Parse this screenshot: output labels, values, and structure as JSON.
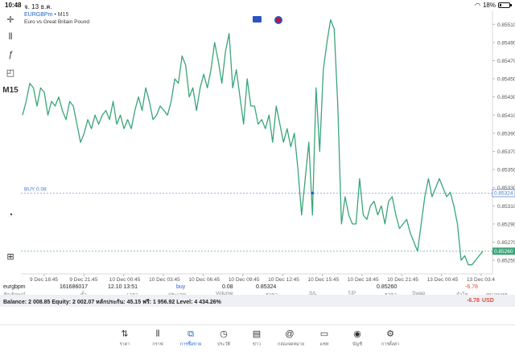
{
  "status": {
    "time": "10:48",
    "date": "จ. 13 ธ.ค.",
    "battery": "18%",
    "battery_level": 0.18
  },
  "toolbar": {
    "timeframe": "M15"
  },
  "chart_header": {
    "symbol": "EURGBPm",
    "sep": "•",
    "timeframe": "M15",
    "description": "Euro vs Great Britain Pound"
  },
  "chart_data": {
    "type": "line",
    "color": "#3aa57a",
    "ylim": [
      0.85235,
      0.8552
    ],
    "y_ticks": [
      "0.85510",
      "0.85490",
      "0.85470",
      "0.85450",
      "0.85430",
      "0.85410",
      "0.85390",
      "0.85370",
      "0.85350",
      "0.85330",
      "0.85310",
      "0.85290",
      "0.85270",
      "0.85250"
    ],
    "x_ticks": [
      "9 Dec 18:45",
      "9 Dec 21:45",
      "10 Dec 00:45",
      "10 Dec 03:45",
      "10 Dec 06:45",
      "10 Dec 09:45",
      "10 Dec 12:45",
      "10 Dec 15:45",
      "10 Dec 18:45",
      "10 Dec 21:45",
      "13 Dec 00:45",
      "13 Dec 03:4"
    ],
    "buy_level": 0.85324,
    "buy_label": "BUY 0.08",
    "buy_price_label": "0.85324",
    "current_price": 0.8526,
    "current_price_label": "0.85260",
    "values": [
      0.8541,
      0.85425,
      0.85445,
      0.8544,
      0.8542,
      0.8544,
      0.85435,
      0.8541,
      0.85425,
      0.8542,
      0.8543,
      0.85415,
      0.85405,
      0.85425,
      0.8542,
      0.854,
      0.8538,
      0.8539,
      0.85405,
      0.85395,
      0.8541,
      0.854,
      0.8541,
      0.85415,
      0.85405,
      0.85425,
      0.854,
      0.8541,
      0.85395,
      0.85405,
      0.85395,
      0.85415,
      0.8543,
      0.85415,
      0.8544,
      0.85425,
      0.85405,
      0.8541,
      0.8542,
      0.85415,
      0.8541,
      0.85425,
      0.8545,
      0.85445,
      0.85475,
      0.85465,
      0.8543,
      0.8544,
      0.85415,
      0.8544,
      0.85455,
      0.8544,
      0.8546,
      0.8549,
      0.8547,
      0.85445,
      0.8548,
      0.855,
      0.8544,
      0.8546,
      0.8543,
      0.854,
      0.8545,
      0.8542,
      0.8542,
      0.854,
      0.85405,
      0.85395,
      0.8541,
      0.8538,
      0.8542,
      0.854,
      0.8538,
      0.85395,
      0.85375,
      0.8539,
      0.8535,
      0.853,
      0.8534,
      0.8538,
      0.853,
      0.8544,
      0.8537,
      0.8546,
      0.8549,
      0.85515,
      0.85505,
      0.8542,
      0.8529,
      0.8532,
      0.853,
      0.8529,
      0.8529,
      0.8534,
      0.853,
      0.85295,
      0.8531,
      0.85315,
      0.853,
      0.8531,
      0.8529,
      0.85315,
      0.8532,
      0.853,
      0.85285,
      0.8529,
      0.85295,
      0.8528,
      0.8527,
      0.8526,
      0.8529,
      0.8532,
      0.8534,
      0.8532,
      0.8533,
      0.8534,
      0.8533,
      0.8532,
      0.85325,
      0.8531,
      0.8529,
      0.8525,
      0.85255,
      0.85245,
      0.85245,
      0.8525,
      0.85255,
      0.8526
    ]
  },
  "trades": {
    "headers": [
      "สัญลักษณ์",
      "ตั๋ว",
      "เวลา",
      "ประเภท",
      "Volume",
      "ราคา",
      "S/L",
      "T/P",
      "ราคา",
      "Swap",
      "กำไร",
      "หมายเหตุ"
    ],
    "row": {
      "symbol": "eurgbpm",
      "ticket": "161686017",
      "time": "12.10 13:51",
      "type": "buy",
      "volume": "0.08",
      "open_price": "0.85324",
      "sl": "",
      "tp": "",
      "price": "0.85260",
      "swap": "",
      "profit": "-6.78",
      "comment": ""
    }
  },
  "balance": {
    "summary": "Balance: 2 008.85 Equity: 2 002.07 หลักประกัน: 45.15 ฟรี: 1 956.92 Level: 4 434.26%",
    "profit": "-6.78",
    "currency": "USD"
  },
  "nav": [
    {
      "label": "ราคา",
      "icon": "arrows-updown-icon"
    },
    {
      "label": "กราฟ",
      "icon": "candlestick-icon"
    },
    {
      "label": "การซื้อขาย",
      "icon": "trade-chart-icon"
    },
    {
      "label": "ประวัติ",
      "icon": "history-icon"
    },
    {
      "label": "ข่าว",
      "icon": "news-icon"
    },
    {
      "label": "กล่องจดหมาย",
      "icon": "mail-at-icon"
    },
    {
      "label": "แชท",
      "icon": "chat-icon"
    },
    {
      "label": "บัญชี",
      "icon": "account-icon"
    },
    {
      "label": "การตั้งค่า",
      "icon": "settings-icon"
    }
  ]
}
